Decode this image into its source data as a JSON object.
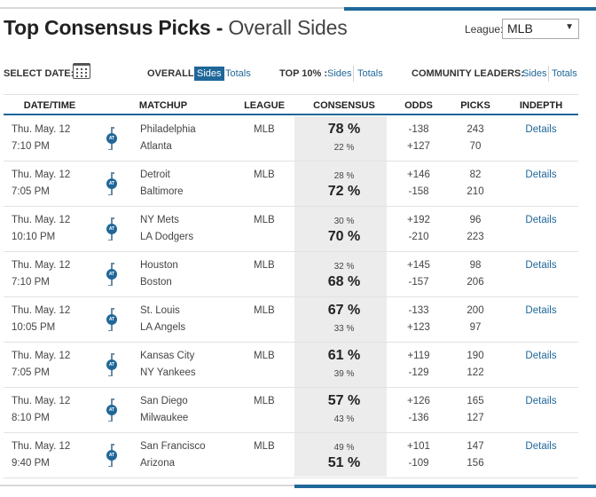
{
  "page": {
    "title_bold": "Top Consensus Picks -",
    "title_light": "Overall Sides"
  },
  "league": {
    "label": "League:",
    "selected": "MLB"
  },
  "filters": {
    "select_date_label": "SELECT DATE:",
    "overall_label": "OVERALL:",
    "overall_sides": "Sides",
    "overall_totals": "Totals",
    "top10_label": "TOP 10% :",
    "top10_sides": "Sides",
    "top10_totals": "Totals",
    "community_label": "COMMUNITY LEADERS:",
    "community_sides": "Sides",
    "community_totals": "Totals"
  },
  "table": {
    "headers": [
      "DATE/TIME",
      "MATCHUP",
      "LEAGUE",
      "CONSENSUS",
      "ODDS",
      "PICKS",
      "INDEPTH"
    ],
    "at_icon_label": "AT",
    "rows": [
      {
        "date": "Thu. May. 12",
        "time": "7:10 PM",
        "team1": "Philadelphia",
        "team2": "Atlanta",
        "league": "MLB",
        "cons1": "78 %",
        "cons2": "22 %",
        "big": 1,
        "odds1": "-138",
        "odds2": "+127",
        "picks1": "243",
        "picks2": "70",
        "details": "Details"
      },
      {
        "date": "Thu. May. 12",
        "time": "7:05 PM",
        "team1": "Detroit",
        "team2": "Baltimore",
        "league": "MLB",
        "cons1": "28 %",
        "cons2": "72 %",
        "big": 2,
        "odds1": "+146",
        "odds2": "-158",
        "picks1": "82",
        "picks2": "210",
        "details": "Details"
      },
      {
        "date": "Thu. May. 12",
        "time": "10:10 PM",
        "team1": "NY Mets",
        "team2": "LA Dodgers",
        "league": "MLB",
        "cons1": "30 %",
        "cons2": "70 %",
        "big": 2,
        "odds1": "+192",
        "odds2": "-210",
        "picks1": "96",
        "picks2": "223",
        "details": "Details"
      },
      {
        "date": "Thu. May. 12",
        "time": "7:10 PM",
        "team1": "Houston",
        "team2": "Boston",
        "league": "MLB",
        "cons1": "32 %",
        "cons2": "68 %",
        "big": 2,
        "odds1": "+145",
        "odds2": "-157",
        "picks1": "98",
        "picks2": "206",
        "details": "Details"
      },
      {
        "date": "Thu. May. 12",
        "time": "10:05 PM",
        "team1": "St. Louis",
        "team2": "LA Angels",
        "league": "MLB",
        "cons1": "67 %",
        "cons2": "33 %",
        "big": 1,
        "odds1": "-133",
        "odds2": "+123",
        "picks1": "200",
        "picks2": "97",
        "details": "Details"
      },
      {
        "date": "Thu. May. 12",
        "time": "7:05 PM",
        "team1": "Kansas City",
        "team2": "NY Yankees",
        "league": "MLB",
        "cons1": "61 %",
        "cons2": "39 %",
        "big": 1,
        "odds1": "+119",
        "odds2": "-129",
        "picks1": "190",
        "picks2": "122",
        "details": "Details"
      },
      {
        "date": "Thu. May. 12",
        "time": "8:10 PM",
        "team1": "San Diego",
        "team2": "Milwaukee",
        "league": "MLB",
        "cons1": "57 %",
        "cons2": "43 %",
        "big": 1,
        "odds1": "+126",
        "odds2": "-136",
        "picks1": "165",
        "picks2": "127",
        "details": "Details"
      },
      {
        "date": "Thu. May. 12",
        "time": "9:40 PM",
        "team1": "San Francisco",
        "team2": "Arizona",
        "league": "MLB",
        "cons1": "49 %",
        "cons2": "51 %",
        "big": 2,
        "odds1": "+101",
        "odds2": "-109",
        "picks1": "147",
        "picks2": "156",
        "details": "Details"
      }
    ]
  },
  "colors": {
    "accent": "#1f6799",
    "consensus_bg": "#ececec"
  }
}
